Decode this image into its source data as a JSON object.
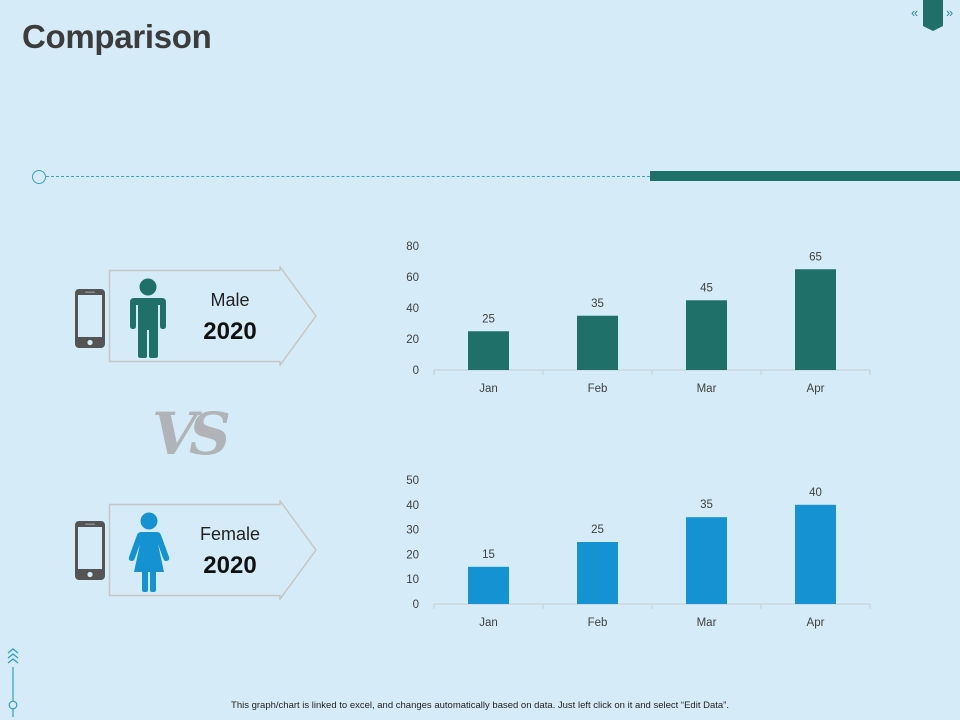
{
  "page": {
    "title": "Comparison",
    "footer_note": "This graph/chart is linked to excel, and changes automatically based on data. Just left click on it and select “Edit Data”.",
    "vs_text": "VS",
    "nav": {
      "prev_symbol": "«",
      "next_symbol": "»"
    }
  },
  "colors": {
    "background": "#d5ecf8",
    "male_series": "#1f7068",
    "female_series": "#1592d2",
    "icon_gray": "#545454",
    "male_icon": "#1f7068",
    "female_icon": "#1592d2"
  },
  "cards": [
    {
      "label": "Male",
      "year": "2020",
      "icon": "male-person-icon"
    },
    {
      "label": "Female",
      "year": "2020",
      "icon": "female-person-icon"
    }
  ],
  "chart_data": [
    {
      "type": "bar",
      "categories": [
        "Jan",
        "Feb",
        "Mar",
        "Apr"
      ],
      "values": [
        25,
        35,
        45,
        65
      ],
      "ylim": [
        0,
        80
      ],
      "yticks": [
        0,
        20,
        40,
        60,
        80
      ],
      "data_labels": true,
      "grid": false,
      "color": "#1f7068"
    },
    {
      "type": "bar",
      "categories": [
        "Jan",
        "Feb",
        "Mar",
        "Apr"
      ],
      "values": [
        15,
        25,
        35,
        40
      ],
      "ylim": [
        0,
        50
      ],
      "yticks": [
        0,
        10,
        20,
        30,
        40,
        50
      ],
      "data_labels": true,
      "grid": false,
      "color": "#1592d2"
    }
  ]
}
